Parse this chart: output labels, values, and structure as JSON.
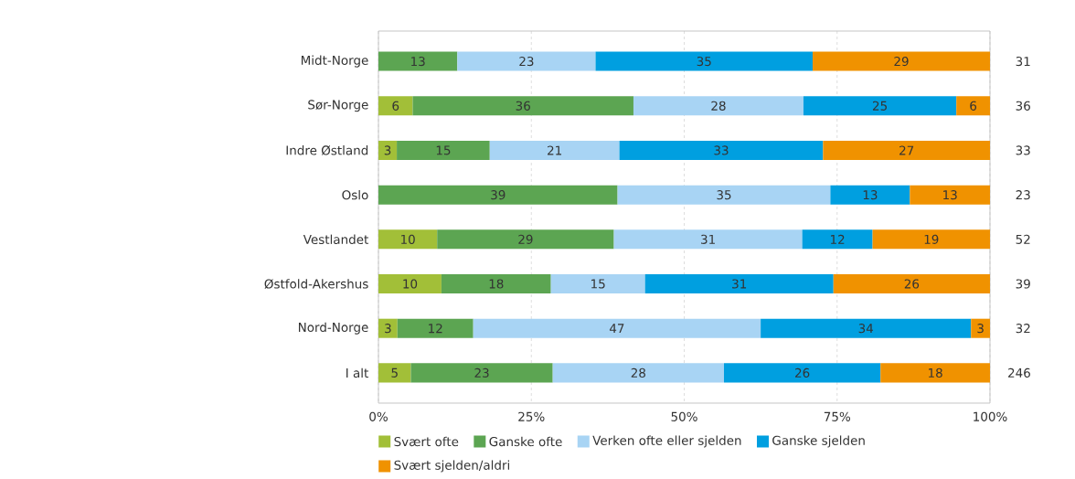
{
  "chart_data": {
    "type": "bar",
    "orientation": "horizontal",
    "stacked": true,
    "categories": [
      "Midt-Norge",
      "Sør-Norge",
      "Indre Østland",
      "Oslo",
      "Vestlandet",
      "Østfold-Akershus",
      "Nord-Norge",
      "I alt"
    ],
    "series": [
      {
        "name": "Svært ofte",
        "color": "#a2bf38",
        "values": [
          null,
          5.6,
          3.0,
          null,
          9.6,
          10.3,
          3.1,
          5.3
        ],
        "value_labels": [
          null,
          "6",
          "3",
          null,
          "10",
          "10",
          "3",
          "5"
        ]
      },
      {
        "name": "Ganske ofte",
        "color": "#5ca552",
        "values": [
          12.9,
          36.1,
          15.2,
          39.1,
          28.9,
          17.9,
          12.4,
          23.2
        ],
        "value_labels": [
          "13",
          "36",
          "15",
          "39",
          "29",
          "18",
          "12",
          "23"
        ]
      },
      {
        "name": "Verken ofte eller sjelden",
        "color": "#a8d4f4",
        "values": [
          22.6,
          27.8,
          21.2,
          34.8,
          30.8,
          15.4,
          47.0,
          28.0
        ],
        "value_labels": [
          "23",
          "28",
          "21",
          "35",
          "31",
          "15",
          "47",
          "28"
        ]
      },
      {
        "name": "Ganske sjelden",
        "color": "#009fe0",
        "values": [
          35.5,
          25.0,
          33.3,
          13.0,
          11.5,
          30.8,
          34.4,
          25.6
        ],
        "value_labels": [
          "35",
          "25",
          "33",
          "13",
          "12",
          "31",
          "34",
          "26"
        ]
      },
      {
        "name": "Svært sjelden/aldri",
        "color": "#f09200",
        "values": [
          29.0,
          5.5,
          27.3,
          13.1,
          19.2,
          25.6,
          3.1,
          17.9
        ],
        "value_labels": [
          "29",
          "6",
          "27",
          "13",
          "19",
          "26",
          "3",
          "18"
        ]
      }
    ],
    "xlim": [
      0,
      100
    ],
    "xticks": [
      {
        "value": 0,
        "label": "0%"
      },
      {
        "value": 25,
        "label": "25%"
      },
      {
        "value": 50,
        "label": "50%"
      },
      {
        "value": 75,
        "label": "75%"
      },
      {
        "value": 100,
        "label": "100%"
      }
    ],
    "grid": "x",
    "legend": "bottom",
    "annotations": [
      "31",
      "36",
      "33",
      "23",
      "52",
      "39",
      "32",
      "246"
    ]
  }
}
